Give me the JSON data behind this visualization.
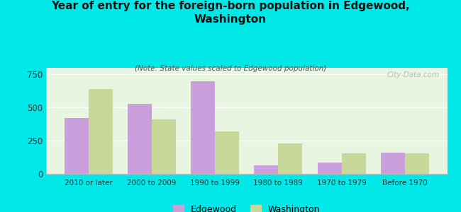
{
  "title": "Year of entry for the foreign-born population in Edgewood,\nWashington",
  "subtitle": "(Note: State values scaled to Edgewood population)",
  "categories": [
    "2010 or later",
    "2000 to 2009",
    "1990 to 1999",
    "1980 to 1989",
    "1970 to 1979",
    "Before 1970"
  ],
  "edgewood_values": [
    420,
    530,
    700,
    65,
    85,
    160
  ],
  "washington_values": [
    640,
    410,
    320,
    230,
    155,
    155
  ],
  "edgewood_color": "#c9a0dc",
  "washington_color": "#c8d89a",
  "background_color": "#00e8e8",
  "plot_bg": "#e8f5e0",
  "ylim": [
    0,
    800
  ],
  "yticks": [
    0,
    250,
    500,
    750
  ],
  "bar_width": 0.38,
  "watermark": "City-Data.com",
  "legend_edgewood": "Edgewood",
  "legend_washington": "Washington"
}
